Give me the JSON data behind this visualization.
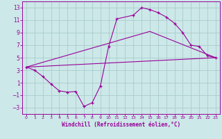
{
  "xlabel": "Windchill (Refroidissement éolien,°C)",
  "bg_color": "#cce8e8",
  "line_color": "#990099",
  "grid_color": "#aacccc",
  "xlim": [
    -0.5,
    23.5
  ],
  "ylim": [
    -4,
    14
  ],
  "xticks": [
    0,
    1,
    2,
    3,
    4,
    5,
    6,
    7,
    8,
    9,
    10,
    11,
    12,
    13,
    14,
    15,
    16,
    17,
    18,
    19,
    20,
    21,
    22,
    23
  ],
  "yticks": [
    -3,
    -1,
    1,
    3,
    5,
    7,
    9,
    11,
    13
  ],
  "line1_x": [
    0,
    1,
    2,
    3,
    4,
    5,
    6,
    7,
    8,
    9,
    10,
    11,
    13,
    14,
    15,
    16,
    17,
    18,
    19,
    20,
    21,
    22,
    23
  ],
  "line1_y": [
    3.5,
    3.0,
    2.0,
    0.8,
    -0.3,
    -0.5,
    -0.4,
    -2.8,
    -2.2,
    0.5,
    6.8,
    11.2,
    11.8,
    13.0,
    12.7,
    12.2,
    11.5,
    10.5,
    9.0,
    7.0,
    6.8,
    5.3,
    5.0
  ],
  "line2_x": [
    0,
    23
  ],
  "line2_y": [
    3.5,
    5.0
  ],
  "line3_x": [
    0,
    15,
    23
  ],
  "line3_y": [
    3.5,
    9.2,
    5.0
  ]
}
